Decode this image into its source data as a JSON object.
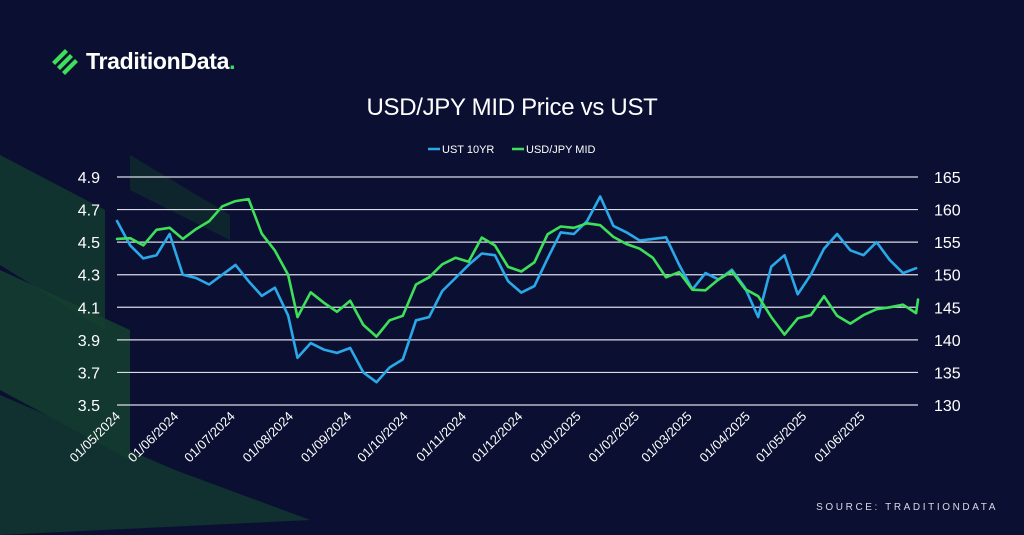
{
  "brand": {
    "name_main": "Tradition",
    "name_accent": "Data",
    "name_dot": ".",
    "accent_color": "#3ee05a"
  },
  "source": "SOURCE: TRADITIONDATA",
  "colors": {
    "background": "#0b1033",
    "ust": "#2aa8e8",
    "usdjpy": "#3ee05a",
    "grid": "#d9dbe6"
  },
  "chart_data": {
    "type": "line",
    "title": "USD/JPY MID Price vs UST",
    "legend_position": "top-center",
    "grid": true,
    "x_type": "date",
    "x_tick_labels": [
      "01/05/2024",
      "01/06/2024",
      "01/07/2024",
      "01/08/2024",
      "01/09/2024",
      "01/10/2024",
      "01/11/2024",
      "01/12/2024",
      "01/01/2025",
      "01/02/2025",
      "01/03/2025",
      "01/04/2025",
      "01/05/2025",
      "01/06/2025"
    ],
    "xlim": [
      "2024-05-01",
      "2025-07-01"
    ],
    "y_left": {
      "ylim": [
        3.5,
        4.9
      ],
      "ticks": [
        "4.9",
        "4.7",
        "4.5",
        "4.3",
        "4.1",
        "3.9",
        "3.7",
        "3.5"
      ]
    },
    "y_right": {
      "ylim": [
        130,
        165
      ],
      "ticks": [
        "165",
        "160",
        "155",
        "150",
        "145",
        "140",
        "135",
        "130"
      ]
    },
    "series": [
      {
        "name": "UST 10YR",
        "axis": "left",
        "color": "#2aa8e8",
        "points": [
          [
            "2024-05-01",
            4.63
          ],
          [
            "2024-05-08",
            4.48
          ],
          [
            "2024-05-15",
            4.4
          ],
          [
            "2024-05-22",
            4.42
          ],
          [
            "2024-05-29",
            4.55
          ],
          [
            "2024-06-05",
            4.3
          ],
          [
            "2024-06-12",
            4.28
          ],
          [
            "2024-06-19",
            4.24
          ],
          [
            "2024-06-26",
            4.3
          ],
          [
            "2024-07-03",
            4.36
          ],
          [
            "2024-07-10",
            4.26
          ],
          [
            "2024-07-17",
            4.17
          ],
          [
            "2024-07-24",
            4.22
          ],
          [
            "2024-07-31",
            4.05
          ],
          [
            "2024-08-05",
            3.79
          ],
          [
            "2024-08-12",
            3.88
          ],
          [
            "2024-08-19",
            3.84
          ],
          [
            "2024-08-26",
            3.82
          ],
          [
            "2024-09-02",
            3.85
          ],
          [
            "2024-09-09",
            3.7
          ],
          [
            "2024-09-16",
            3.64
          ],
          [
            "2024-09-23",
            3.73
          ],
          [
            "2024-09-30",
            3.78
          ],
          [
            "2024-10-07",
            4.02
          ],
          [
            "2024-10-14",
            4.04
          ],
          [
            "2024-10-21",
            4.2
          ],
          [
            "2024-10-28",
            4.28
          ],
          [
            "2024-11-04",
            4.36
          ],
          [
            "2024-11-11",
            4.43
          ],
          [
            "2024-11-18",
            4.42
          ],
          [
            "2024-11-25",
            4.26
          ],
          [
            "2024-12-02",
            4.19
          ],
          [
            "2024-12-09",
            4.23
          ],
          [
            "2024-12-16",
            4.4
          ],
          [
            "2024-12-23",
            4.56
          ],
          [
            "2024-12-30",
            4.55
          ],
          [
            "2025-01-06",
            4.63
          ],
          [
            "2025-01-13",
            4.78
          ],
          [
            "2025-01-20",
            4.6
          ],
          [
            "2025-01-27",
            4.56
          ],
          [
            "2025-02-03",
            4.51
          ],
          [
            "2025-02-10",
            4.52
          ],
          [
            "2025-02-17",
            4.53
          ],
          [
            "2025-02-24",
            4.36
          ],
          [
            "2025-03-03",
            4.21
          ],
          [
            "2025-03-10",
            4.31
          ],
          [
            "2025-03-17",
            4.27
          ],
          [
            "2025-03-24",
            4.33
          ],
          [
            "2025-03-31",
            4.22
          ],
          [
            "2025-04-07",
            4.04
          ],
          [
            "2025-04-14",
            4.35
          ],
          [
            "2025-04-21",
            4.42
          ],
          [
            "2025-04-28",
            4.18
          ],
          [
            "2025-05-05",
            4.3
          ],
          [
            "2025-05-12",
            4.46
          ],
          [
            "2025-05-19",
            4.55
          ],
          [
            "2025-05-26",
            4.45
          ],
          [
            "2025-06-02",
            4.42
          ],
          [
            "2025-06-09",
            4.5
          ],
          [
            "2025-06-16",
            4.39
          ],
          [
            "2025-06-23",
            4.31
          ],
          [
            "2025-06-30",
            4.34
          ]
        ]
      },
      {
        "name": "USD/JPY MID",
        "axis": "right",
        "color": "#3ee05a",
        "points": [
          [
            "2024-05-01",
            155.5
          ],
          [
            "2024-05-08",
            155.6
          ],
          [
            "2024-05-15",
            154.5
          ],
          [
            "2024-05-22",
            156.9
          ],
          [
            "2024-05-29",
            157.2
          ],
          [
            "2024-06-05",
            155.5
          ],
          [
            "2024-06-12",
            157.0
          ],
          [
            "2024-06-19",
            158.2
          ],
          [
            "2024-06-26",
            160.5
          ],
          [
            "2024-07-03",
            161.3
          ],
          [
            "2024-07-10",
            161.6
          ],
          [
            "2024-07-17",
            156.3
          ],
          [
            "2024-07-24",
            153.7
          ],
          [
            "2024-07-31",
            150.0
          ],
          [
            "2024-08-05",
            143.5
          ],
          [
            "2024-08-12",
            147.3
          ],
          [
            "2024-08-19",
            145.7
          ],
          [
            "2024-08-26",
            144.3
          ],
          [
            "2024-09-02",
            146.0
          ],
          [
            "2024-09-09",
            142.3
          ],
          [
            "2024-09-16",
            140.5
          ],
          [
            "2024-09-23",
            143.0
          ],
          [
            "2024-09-30",
            143.7
          ],
          [
            "2024-10-07",
            148.5
          ],
          [
            "2024-10-14",
            149.6
          ],
          [
            "2024-10-21",
            151.6
          ],
          [
            "2024-10-28",
            152.6
          ],
          [
            "2024-11-04",
            152.0
          ],
          [
            "2024-11-11",
            155.7
          ],
          [
            "2024-11-18",
            154.5
          ],
          [
            "2024-11-25",
            151.2
          ],
          [
            "2024-12-02",
            150.5
          ],
          [
            "2024-12-09",
            151.9
          ],
          [
            "2024-12-16",
            156.2
          ],
          [
            "2024-12-23",
            157.4
          ],
          [
            "2024-12-30",
            157.2
          ],
          [
            "2025-01-06",
            157.9
          ],
          [
            "2025-01-13",
            157.6
          ],
          [
            "2025-01-20",
            155.8
          ],
          [
            "2025-01-27",
            154.7
          ],
          [
            "2025-02-03",
            154.0
          ],
          [
            "2025-02-10",
            152.6
          ],
          [
            "2025-02-17",
            149.6
          ],
          [
            "2025-02-24",
            150.4
          ],
          [
            "2025-03-03",
            147.7
          ],
          [
            "2025-03-10",
            147.6
          ],
          [
            "2025-03-17",
            149.3
          ],
          [
            "2025-03-24",
            150.5
          ],
          [
            "2025-03-31",
            147.8
          ],
          [
            "2025-04-07",
            146.7
          ],
          [
            "2025-04-14",
            143.5
          ],
          [
            "2025-04-21",
            140.8
          ],
          [
            "2025-04-28",
            143.3
          ],
          [
            "2025-05-05",
            143.8
          ],
          [
            "2025-05-12",
            146.7
          ],
          [
            "2025-05-19",
            143.7
          ],
          [
            "2025-05-26",
            142.5
          ],
          [
            "2025-06-02",
            143.8
          ],
          [
            "2025-06-09",
            144.7
          ],
          [
            "2025-06-16",
            145.0
          ],
          [
            "2025-06-23",
            145.4
          ],
          [
            "2025-06-30",
            144.1
          ],
          [
            "2025-07-01",
            146.2
          ]
        ]
      }
    ]
  }
}
